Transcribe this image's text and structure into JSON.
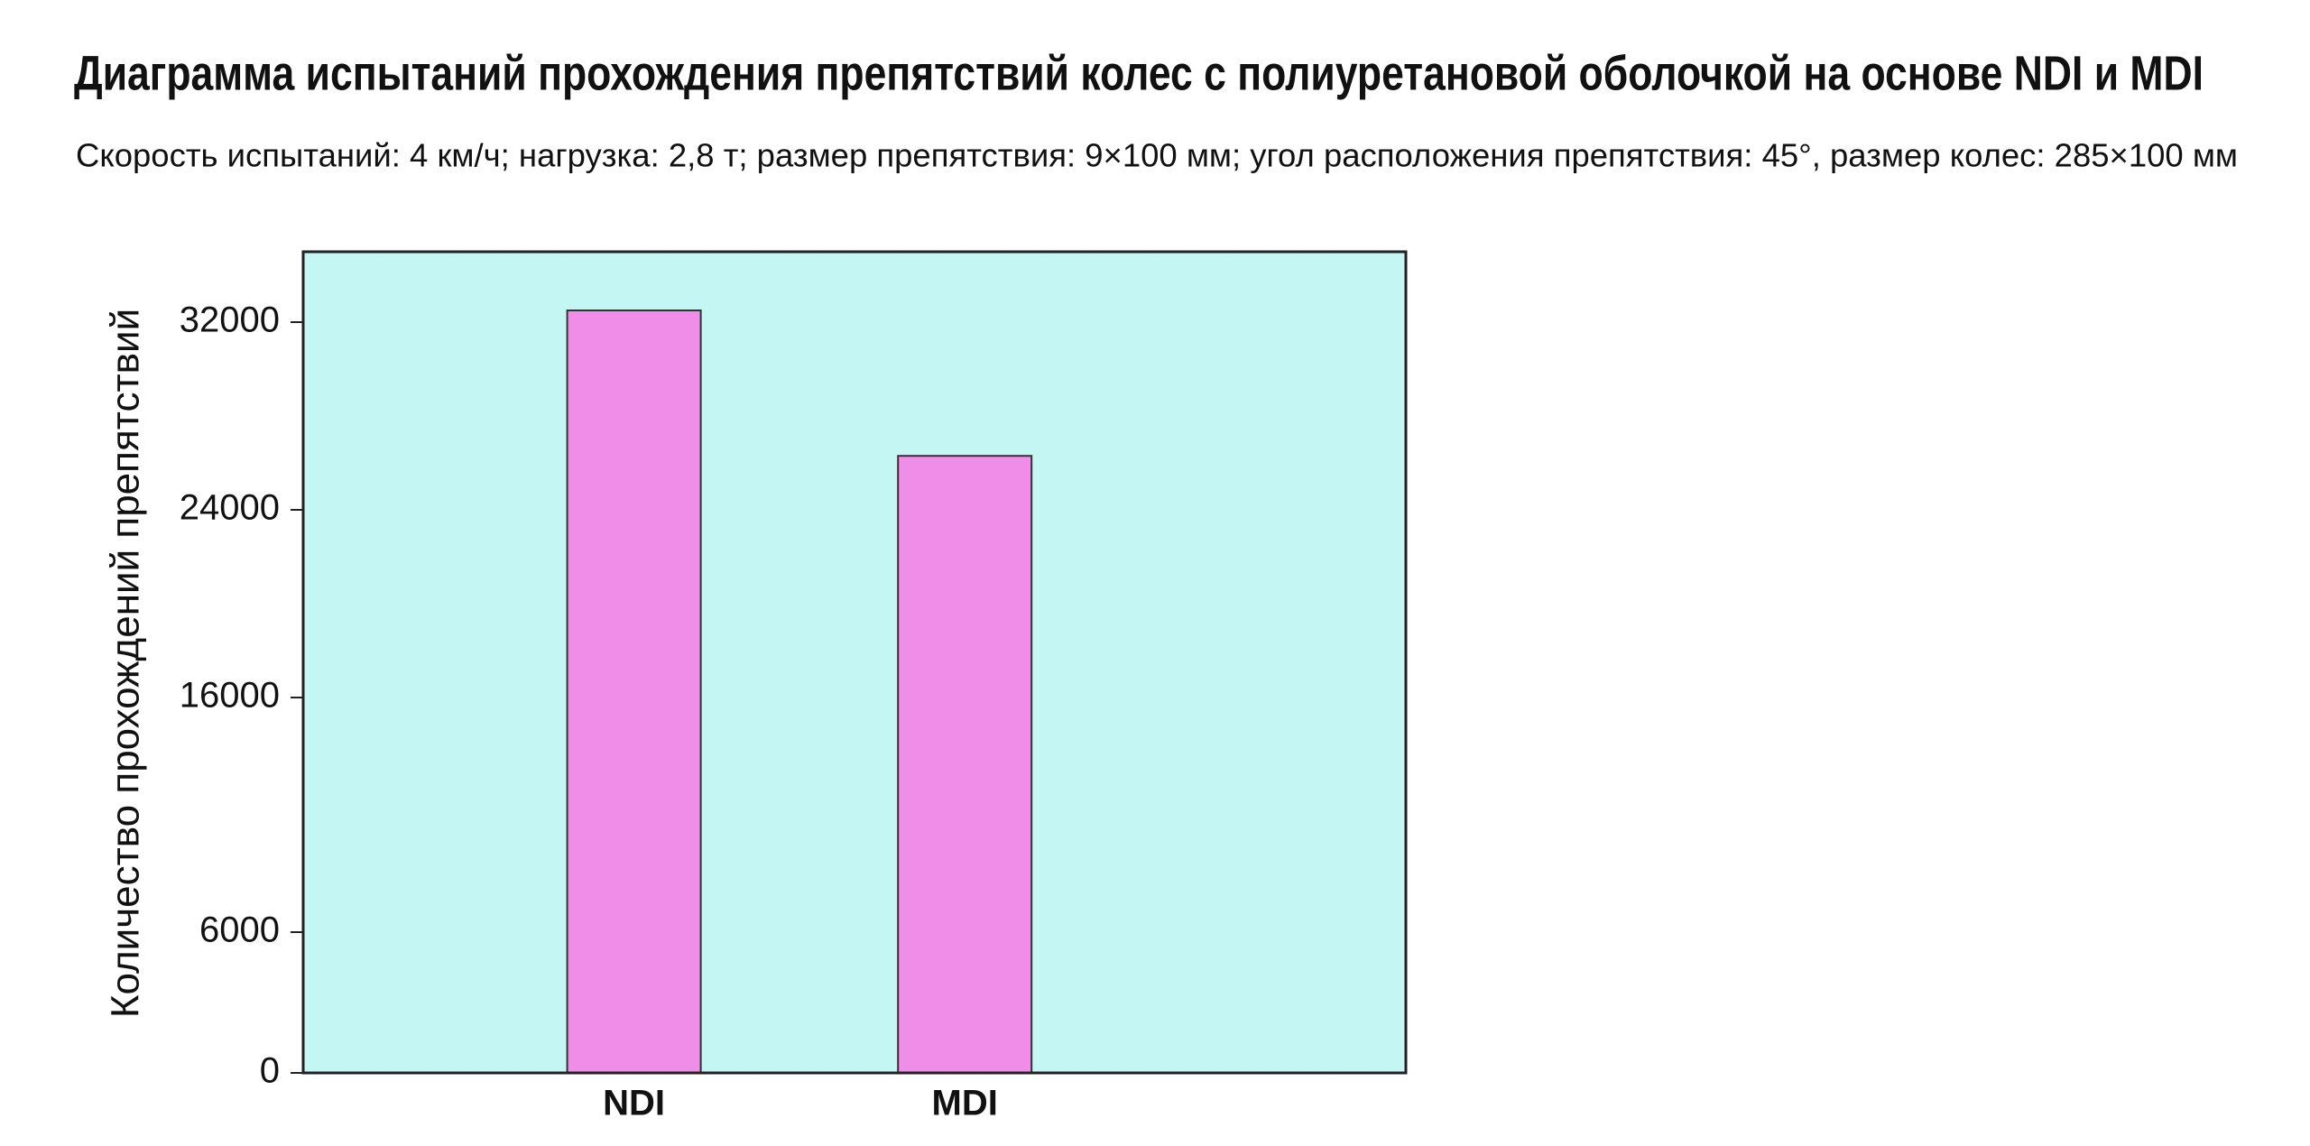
{
  "chart_data": {
    "type": "bar",
    "title": "Диаграмма испытаний прохождения препятствий колес с полиуретановой оболочкой на основе NDI и MDI",
    "subtitle": "Скорость испытаний: 4 км/ч; нагрузка: 2,8 т; размер препятствия: 9×100 мм; угол расположения препятствия: 45°, размер колес: 285×100 мм",
    "y_label": "Количество прохождений препятствий",
    "categories": [
      "NDI",
      "MDI"
    ],
    "values": [
      32500,
      26300
    ],
    "color": "#f08de9",
    "background": "#c4f7f3",
    "ylim": [
      0,
      35000
    ],
    "yticks": [
      0,
      6000,
      16000,
      24000,
      32000
    ],
    "grid": false
  }
}
